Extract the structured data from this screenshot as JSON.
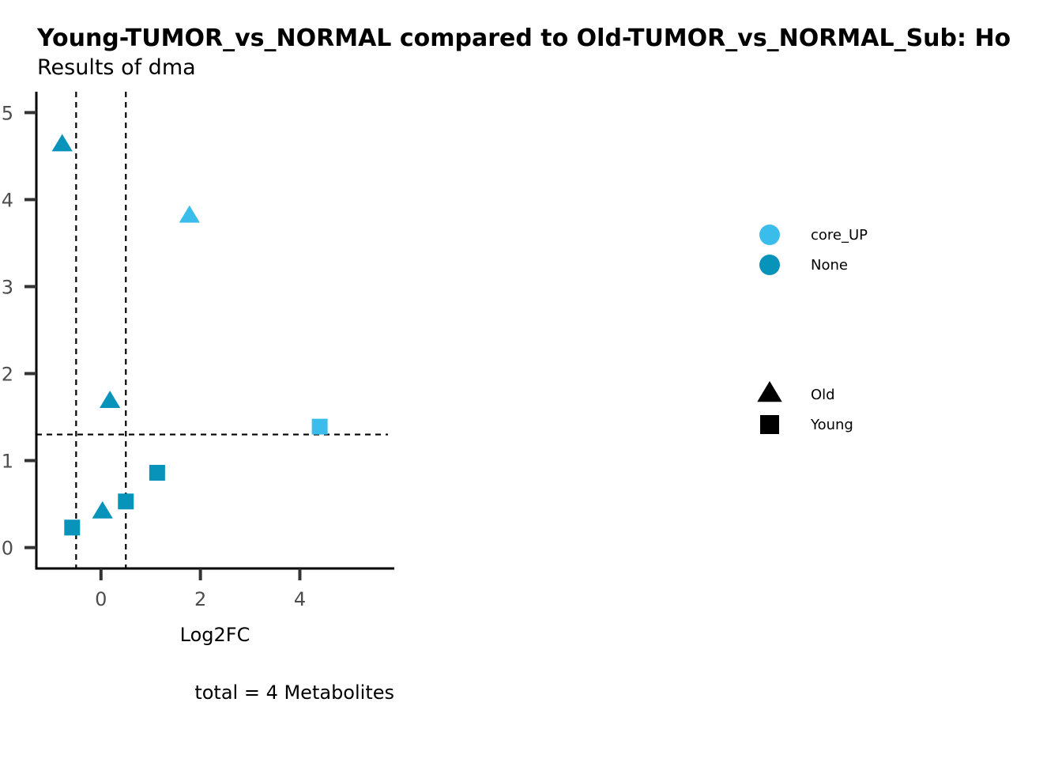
{
  "chart_data": {
    "type": "scatter",
    "title": "Young-TUMOR_vs_NORMAL compared to Old-TUMOR_vs_NORMAL_Sub: Ho",
    "subtitle": "Results of dma",
    "xlabel": "Log2FC",
    "ylabel": "",
    "caption": "total = 4 Metabolites",
    "xlim": [
      -1.3,
      5.9
    ],
    "ylim": [
      -0.24,
      5.24
    ],
    "x_ticks": [
      0,
      2,
      4
    ],
    "y_ticks": [
      0,
      1,
      2,
      3,
      4,
      5
    ],
    "vlines": [
      -0.5,
      0.5
    ],
    "hline": 1.3,
    "grid": false,
    "legend_position": "right",
    "colors": {
      "core_UP": "#3BBDEB",
      "None": "#0893BA"
    },
    "color_legend": [
      "core_UP",
      "None"
    ],
    "shape_legend": [
      {
        "name": "Old",
        "shape": "triangle"
      },
      {
        "name": "Young",
        "shape": "square"
      }
    ],
    "points": [
      {
        "x": -0.78,
        "y": 4.64,
        "shape": "Old",
        "color": "None"
      },
      {
        "x": 1.78,
        "y": 3.82,
        "shape": "Old",
        "color": "core_UP"
      },
      {
        "x": 0.18,
        "y": 1.69,
        "shape": "Old",
        "color": "None"
      },
      {
        "x": 0.03,
        "y": 0.42,
        "shape": "Old",
        "color": "None"
      },
      {
        "x": 4.4,
        "y": 1.39,
        "shape": "Young",
        "color": "core_UP"
      },
      {
        "x": 1.13,
        "y": 0.86,
        "shape": "Young",
        "color": "None"
      },
      {
        "x": 0.5,
        "y": 0.53,
        "shape": "Young",
        "color": "None"
      },
      {
        "x": -0.58,
        "y": 0.23,
        "shape": "Young",
        "color": "None"
      }
    ]
  }
}
